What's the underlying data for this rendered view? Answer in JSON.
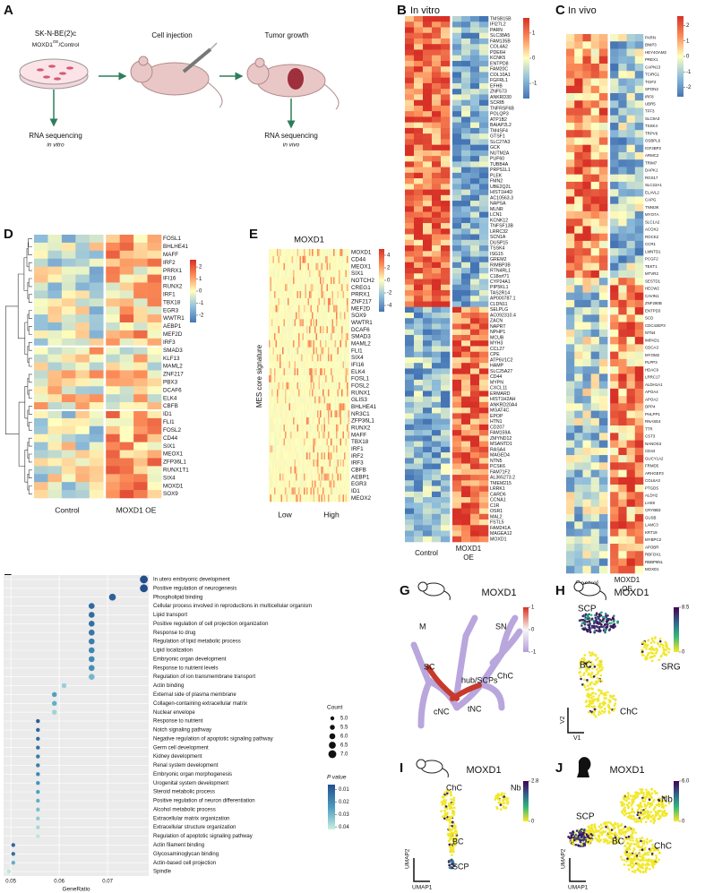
{
  "panel_a": {
    "label": "A",
    "cell_line": "SK-N-BE(2)c",
    "condition": "MOXD1",
    "condition_sup": "OE",
    "condition_rest": "/Control",
    "step1": "Cell injection",
    "step2": "Tumor growth",
    "rna1": "RNA sequencing",
    "rna1_sub": "in vitro",
    "rna2": "RNA sequencing",
    "rna2_sub": "in vivo"
  },
  "panel_b": {
    "label": "B",
    "title": "In vitro",
    "colorbar_ticks": [
      1,
      0,
      -1
    ],
    "colorbar_lim": [
      -1.6,
      1.6
    ],
    "groups": [
      "Control",
      "MOXD1",
      "OE"
    ],
    "genes": [
      "TMSB15B",
      "IFI27L2",
      "PARN",
      "SLC38A5",
      "FAM135B",
      "COL4A2",
      "PDE6H",
      "KCNK5",
      "ENTPD8",
      "FAM20C",
      "COL10A1",
      "FGFRL1",
      "EFHB",
      "ZNF573",
      "ANKRD30",
      "SCRIB",
      "TNFRSF6B",
      "POLQP3",
      "ATP1B2",
      "BAIAP2L2",
      "TM4SF4",
      "GTSF1",
      "SLC27A3",
      "GCK",
      "NUTM2A",
      "PUF60",
      "TUBB4A",
      "PRPS1L1",
      "PLEK",
      "FMN2",
      "UBE2Q2L",
      "HIST1H4D",
      "AC10563.3",
      "NAPSA",
      "MLNR",
      "LCN1",
      "KCNK12",
      "TNFSF13B",
      "LRRC32",
      "SCN1A",
      "DUSP15",
      "TSSK4",
      "ISG15",
      "GREM2",
      "RIMBP3B",
      "RTN4RL1",
      "C18orf71",
      "CYP24A1",
      "PIP5KL1",
      "TAS2R14",
      "AP000787.1",
      "CLDN11",
      "SELPLG",
      "AC092310.4",
      "ZACN",
      "NAPRT",
      "NPHP1",
      "MCUB",
      "MYH3",
      "CCL27",
      "CPE",
      "ATP6V1C2",
      "HAMP",
      "SLC25A27",
      "CD44",
      "MYPN",
      "CXCL11",
      "ERMARD",
      "HIST1H2AH",
      "ANKRD20A4",
      "MGAT4C",
      "EPOP",
      "HTN1",
      "CD207",
      "FAM159A",
      "ZMYND12",
      "MSANTD1",
      "RASA4",
      "MAGED4",
      "NTN5",
      "PCSK6",
      "FAM71F2",
      "AL365273.2",
      "TMEM215",
      "LRRK1",
      "CARD6",
      "CCNA1",
      "C1R",
      "OSR1",
      "MAL2",
      "FSTL5",
      "FAM241A",
      "MAGEA12",
      "MOXD1"
    ]
  },
  "panel_c": {
    "label": "C",
    "title": "In vivo",
    "colorbar_ticks": [
      2,
      1,
      0,
      -1,
      -2
    ],
    "colorbar_lim": [
      -2.6,
      2.6
    ],
    "groups": [
      "Control",
      "MOXD1",
      "OE"
    ],
    "genes": [
      "PARN",
      "BNIP3",
      "HEY4OAM2",
      "PREX1",
      "CAPN13",
      "TCIRG1",
      "TGIF2",
      "SPON2",
      "IRF8",
      "UBR5",
      "TFF3",
      "SLC9A3",
      "TSSK4",
      "TRPV6",
      "OSBPL6",
      "IGF2BP2",
      "ARMC2",
      "TRIM7",
      "DAPK1",
      "RGS17",
      "SLC22A1",
      "ELAVL2",
      "CAPG",
      "TNNI3K",
      "MYO7A",
      "SLC1A2",
      "ACOX2",
      "ROCK2",
      "CCR1",
      "LMNTD1",
      "PCGF2",
      "TEKT1",
      "MTVR2",
      "SESTD1",
      "HECW2",
      "CAVIN1",
      "ZNF280B",
      "ENTPD3",
      "SCD",
      "CDC42EP3",
      "NTN4",
      "IMPAD1",
      "CDCA3",
      "MYOM2",
      "PLPP3",
      "HDAC9",
      "LRRC17",
      "ALDH1A1",
      "APOA4",
      "APOA2",
      "DPP4",
      "PHLPP1",
      "RNASE4",
      "TTR",
      "CST3",
      "NANOS3",
      "CD44",
      "GUCY1A2",
      "FRMD5",
      "ARHGEF3",
      "COL6A3",
      "PTGDS",
      "ALDH2",
      "LHX9",
      "CRYBB3",
      "GUSB",
      "LAMC3",
      "KRT19",
      "MYBPC2",
      "APOBR",
      "RBFOX1",
      "RBBP8NL",
      "MOXD1"
    ]
  },
  "panel_d": {
    "label": "D",
    "colorbar_ticks": [
      2,
      1,
      0,
      -1,
      -2
    ],
    "colorbar_lim": [
      -2.6,
      2.6
    ],
    "groups": [
      "Control",
      "MOXD1 OE"
    ],
    "genes": [
      "FOSL1",
      "BHLHE41",
      "MAFF",
      "IRF2",
      "PRRX1",
      "IFI16",
      "RUNX2",
      "IRF1",
      "TBX18",
      "EGR3",
      "WWTR1",
      "AEBP1",
      "MEF2D",
      "IRF3",
      "SMAD3",
      "KLF13",
      "MAML2",
      "ZNF217",
      "PBX3",
      "DCAF6",
      "ELK4",
      "CBFB",
      "ID1",
      "FLI1",
      "FOSL2",
      "CD44",
      "SIX1",
      "MEOX1",
      "ZFP36L1",
      "RUNX1T1",
      "SIX4",
      "MOXD1",
      "SOX9"
    ]
  },
  "panel_e": {
    "label": "E",
    "title": "MOXD1",
    "y_label": "MES core signature",
    "colorbar_ticks": [
      4,
      2,
      0,
      -2,
      -4
    ],
    "colorbar_lim": [
      -5,
      5
    ],
    "groups": [
      "Low",
      "High"
    ],
    "genes": [
      "MOXD1",
      "CD44",
      "MEOX1",
      "SIX1",
      "NOTCH2",
      "CREG1",
      "PRRX1",
      "ZNF217",
      "MEF2D",
      "SOX9",
      "WWTR1",
      "DCAF6",
      "SMAD3",
      "MAML2",
      "FLI1",
      "SIX4",
      "IFI16",
      "ELK4",
      "FOSL1",
      "FOSL2",
      "RUNX1",
      "GLIS3",
      "BHLHE41",
      "NR3C1",
      "ZFP36L1",
      "RUNX2",
      "MAFF",
      "TBX18",
      "IRF1",
      "IRF2",
      "IRF3",
      "CBFB",
      "AEBP1",
      "EGR3",
      "ID1",
      "MEOX2"
    ]
  },
  "chart_data": {
    "type": "dot",
    "label": "F",
    "x_label": "GeneRatio",
    "categories": [
      "In utero embryonic development",
      "Positive regulation of neurogenesis",
      "Phospholipid binding",
      "Cellular process involved in reproductions in multicellular organism",
      "Lipid transport",
      "Positive regulation of cell projection organization",
      "Response to drug",
      "Regulation of lipid metabolic process",
      "Lipid localization",
      "Embryonic organ development",
      "Response to nutrient levels",
      "Regulation of ion transmembrane transport",
      "Actin binding",
      "External side of plasma membrane",
      "Collagen-containing extracellular matrix",
      "Nuclear envelope",
      "Response to nutrient",
      "Notch signaling pathway",
      "Negative regulation of apoptotic signaling pathway",
      "Germ cell development",
      "Kidney development",
      "Renal system development",
      "Embryonic organ morphogenesis",
      "Urogenital system development",
      "Steroid metabolic process",
      "Positive regulation of neuron differentiation",
      "Alcohol metabolic process",
      "Extracellular matrix organization",
      "Extracellular structure organization",
      "Regulation of apoptotic signaling pathway",
      "Actin filament binding",
      "Glycosaminoglycan binding",
      "Actin-based cell projection",
      "Spindle"
    ],
    "values": [
      0.0775,
      0.0775,
      0.071,
      0.0667,
      0.0667,
      0.0667,
      0.0667,
      0.0667,
      0.0667,
      0.0667,
      0.0667,
      0.0667,
      0.061,
      0.059,
      0.059,
      0.059,
      0.0556,
      0.0556,
      0.0556,
      0.0556,
      0.0556,
      0.0556,
      0.0556,
      0.0556,
      0.0556,
      0.0556,
      0.0556,
      0.0556,
      0.0556,
      0.0556,
      0.0505,
      0.0505,
      0.0505,
      0.0496
    ],
    "counts": [
      7,
      7,
      6.5,
      6,
      6,
      6,
      6,
      6,
      6,
      6,
      6,
      6,
      5.5,
      5.5,
      5.5,
      5.5,
      5,
      5,
      5,
      5,
      5,
      5,
      5,
      5,
      5,
      5,
      5,
      5,
      5,
      5,
      5,
      5,
      5,
      5
    ],
    "pvalues": [
      0.006,
      0.006,
      0.01,
      0.012,
      0.013,
      0.014,
      0.015,
      0.017,
      0.019,
      0.02,
      0.021,
      0.03,
      0.035,
      0.025,
      0.028,
      0.036,
      0.009,
      0.011,
      0.013,
      0.014,
      0.016,
      0.017,
      0.019,
      0.022,
      0.025,
      0.028,
      0.031,
      0.034,
      0.037,
      0.04,
      0.012,
      0.014,
      0.028,
      0.04
    ],
    "xlim": [
      0.0485,
      0.0785
    ],
    "xticks": [
      0.05,
      0.06,
      0.07
    ],
    "count_title": "Count",
    "count_ticks": [
      {
        "value": 5,
        "label": "5.0"
      },
      {
        "value": 5.5,
        "label": "5.5"
      },
      {
        "value": 6,
        "label": "6.0"
      },
      {
        "value": 6.5,
        "label": "6.5"
      },
      {
        "value": 7,
        "label": "7.0"
      }
    ],
    "p_title": "P value",
    "p_ticks": [
      0.01,
      0.02,
      0.03,
      0.04
    ],
    "plim": [
      0.006,
      0.042
    ],
    "grid": true
  },
  "panel_g": {
    "label": "G",
    "title": "MOXD1",
    "colorbar_ticks": [
      1,
      0,
      -1
    ],
    "colorbar_lim": [
      -1,
      1
    ],
    "clusters": [
      "M",
      "SN",
      "SC",
      "hub/SCPs",
      "ChC",
      "cNC",
      "tNC"
    ]
  },
  "panel_h": {
    "label": "H",
    "title": "MOXD1",
    "colorbar_ticks": [
      8.5,
      0
    ],
    "colorbar_lim": [
      0,
      8.5
    ],
    "clusters": [
      "SCP",
      "BC",
      "SRG",
      "ChC"
    ],
    "axes": [
      "V1",
      "V2"
    ]
  },
  "panel_i": {
    "label": "I",
    "title": "MOXD1",
    "colorbar_ticks": [
      2.8,
      0
    ],
    "colorbar_lim": [
      0,
      2.8
    ],
    "clusters": [
      "ChC",
      "Nb",
      "BC",
      "SCP"
    ],
    "axes": [
      "UMAP1",
      "UMAP2"
    ]
  },
  "panel_j": {
    "label": "J",
    "title": "MOXD1",
    "colorbar_ticks": [
      {
        "value": 6,
        "label": "6.0"
      },
      0
    ],
    "colorbar_lim": [
      0,
      6
    ],
    "clusters": [
      "SCP",
      "Nb",
      "BC",
      "ChC"
    ],
    "axes": [
      "UMAP1",
      "UMAP2"
    ]
  }
}
